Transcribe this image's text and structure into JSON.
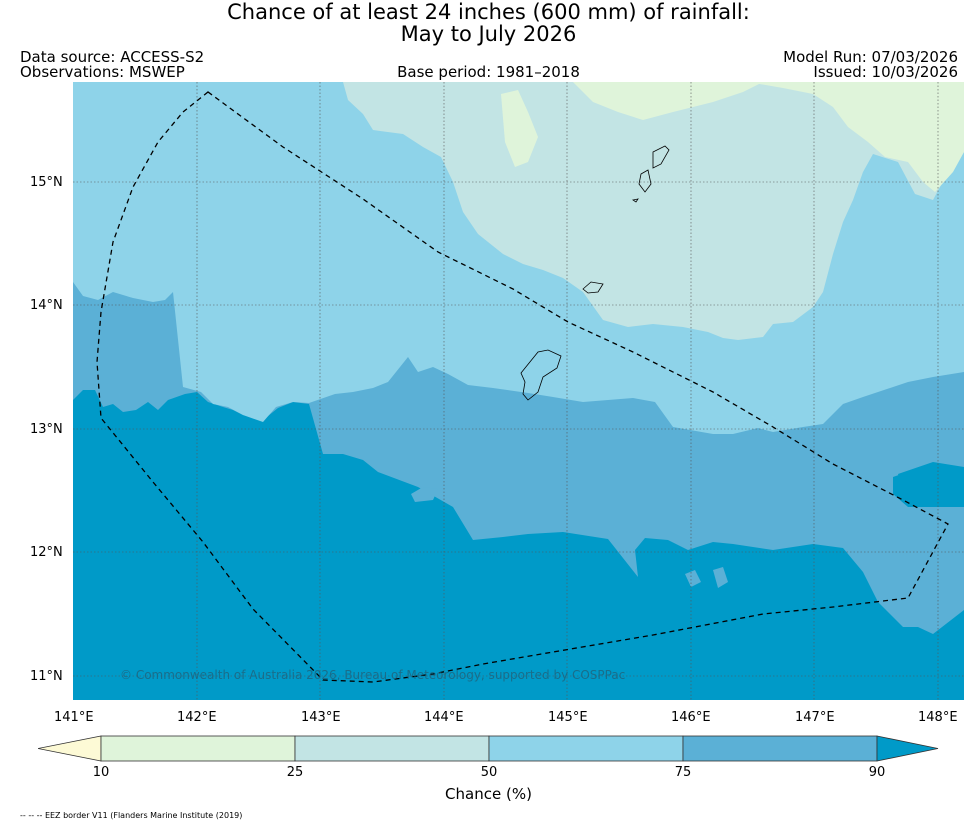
{
  "title": {
    "line1": "Chance of at least 24 inches (600  mm) of rainfall:",
    "line2": "May to July 2026"
  },
  "meta": {
    "data_source": "Data source: ACCESS-S2",
    "observations": "Observations: MSWEP",
    "base_period": "Base period: 1981–2018",
    "model_run": "Model Run: 07/03/2026",
    "issued": "Issued: 10/03/2026"
  },
  "map": {
    "lon_ticks": [
      "141°E",
      "142°E",
      "143°E",
      "144°E",
      "145°E",
      "146°E",
      "147°E",
      "148°E"
    ],
    "lat_ticks": [
      "15°N",
      "14°N",
      "13°N",
      "12°N",
      "11°N"
    ],
    "copyright": "© Commonwealth of Australia 2026, Bureau of Meteorology, supported by COSPPac"
  },
  "colorbar": {
    "ticks": [
      "10",
      "25",
      "50",
      "75",
      "90"
    ],
    "label": "Chance (%)",
    "colors": [
      "#fdfad6",
      "#dff4da",
      "#c2e4e4",
      "#8ed3e9",
      "#5bb0d6",
      "#009ac8"
    ]
  },
  "footnote": "-- -- -- EEZ border V11 (Flanders Marine Institute (2019)"
}
